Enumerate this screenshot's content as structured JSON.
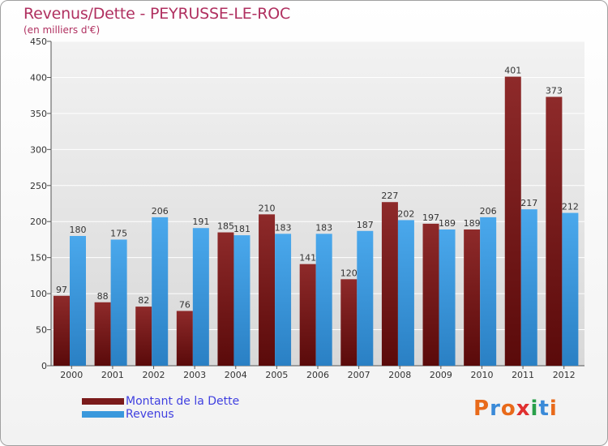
{
  "chart_data": {
    "type": "bar",
    "title": "Revenus/Dette - PEYRUSSE-LE-ROC",
    "subtitle": "(en milliers d'€)",
    "categories": [
      "2000",
      "2001",
      "2002",
      "2003",
      "2004",
      "2005",
      "2006",
      "2007",
      "2008",
      "2009",
      "2010",
      "2011",
      "2012"
    ],
    "series": [
      {
        "name": "Montant de la Dette",
        "color": "#7a1a1a",
        "values": [
          97,
          88,
          82,
          76,
          185,
          210,
          141,
          120,
          227,
          197,
          189,
          401,
          373
        ]
      },
      {
        "name": "Revenus",
        "color": "#3a98dc",
        "values": [
          180,
          175,
          206,
          191,
          181,
          183,
          183,
          187,
          202,
          189,
          206,
          217,
          212
        ]
      }
    ],
    "ylim": [
      0,
      450
    ],
    "yticks": [
      0,
      50,
      100,
      150,
      200,
      250,
      300,
      350,
      400,
      450
    ],
    "grid": true,
    "legend": "bottom-left"
  },
  "brand": {
    "logo_letters": [
      "P",
      "r",
      "o",
      "x",
      "i",
      "t",
      "i"
    ],
    "logo_colors": [
      "#e86a1a",
      "#3a8ad8",
      "#e86a1a",
      "#e03030",
      "#2aa04a",
      "#3a8ad8",
      "#e86a1a"
    ]
  }
}
